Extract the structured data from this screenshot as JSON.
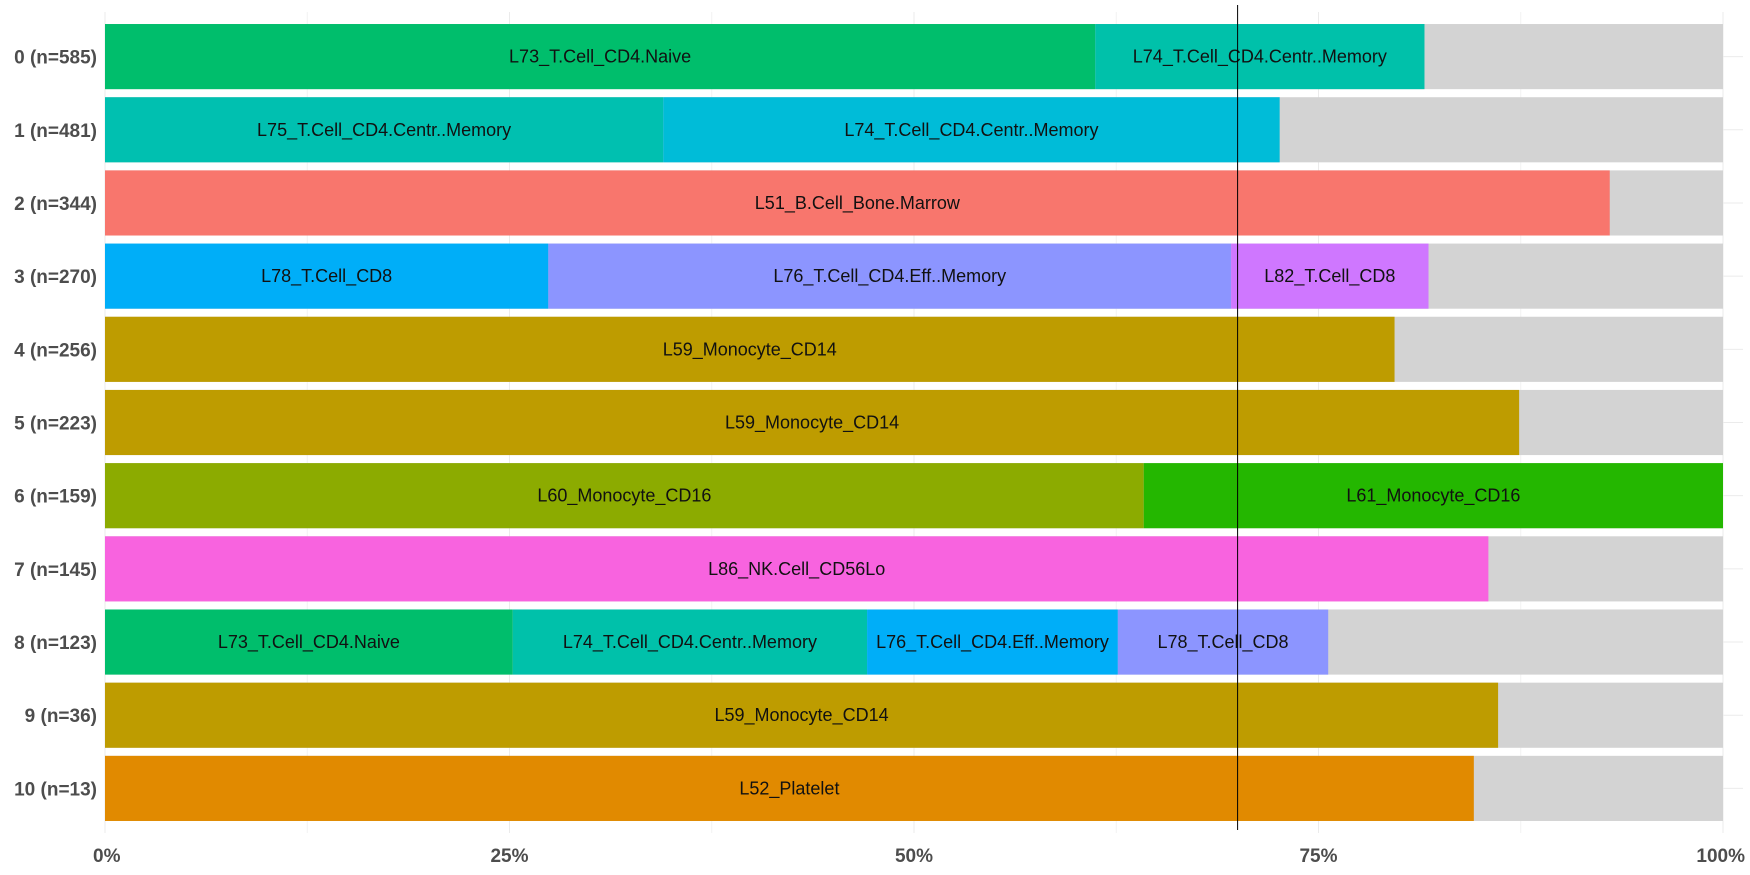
{
  "chart_data": {
    "type": "bar",
    "orientation": "horizontal",
    "stacked": true,
    "xlim": [
      0,
      1
    ],
    "x_ticks": [
      {
        "value": 0,
        "label": "0%"
      },
      {
        "value": 0.25,
        "label": "25%"
      },
      {
        "value": 0.5,
        "label": "50%"
      },
      {
        "value": 0.75,
        "label": "75%"
      },
      {
        "value": 1,
        "label": "100%"
      }
    ],
    "reference_line": 0.7,
    "remainder_color": "#d3d3d3",
    "categories": [
      {
        "label": "0 (n=585)",
        "segments": [
          {
            "name": "L73_T.Cell_CD4.Naive",
            "value": 0.612,
            "color": "#00be6c"
          },
          {
            "name": "L74_T.Cell_CD4.Centr..Memory",
            "value": 0.2035,
            "color": "#00c1aa"
          }
        ]
      },
      {
        "label": "1 (n=481)",
        "segments": [
          {
            "name": "L75_T.Cell_CD4.Centr..Memory",
            "value": 0.345,
            "color": "#00c0b0"
          },
          {
            "name": "L74_T.Cell_CD4.Centr..Memory",
            "value": 0.381,
            "color": "#00bcd8"
          }
        ]
      },
      {
        "label": "2 (n=344)",
        "segments": [
          {
            "name": "L51_B.Cell_Bone.Marrow",
            "value": 0.93,
            "color": "#f8766d"
          }
        ]
      },
      {
        "label": "3 (n=270)",
        "segments": [
          {
            "name": "L78_T.Cell_CD8",
            "value": 0.274,
            "color": "#00aef8"
          },
          {
            "name": "L76_T.Cell_CD4.Eff..Memory",
            "value": 0.422,
            "color": "#8c95ff"
          },
          {
            "name": "L82_T.Cell_CD8",
            "value": 0.122,
            "color": "#cf77ff"
          }
        ]
      },
      {
        "label": "4 (n=256)",
        "segments": [
          {
            "name": "L59_Monocyte_CD14",
            "value": 0.797,
            "color": "#be9c00"
          }
        ]
      },
      {
        "label": "5 (n=223)",
        "segments": [
          {
            "name": "L59_Monocyte_CD14",
            "value": 0.874,
            "color": "#be9c00"
          }
        ]
      },
      {
        "label": "6 (n=159)",
        "segments": [
          {
            "name": "L60_Monocyte_CD16",
            "value": 0.642,
            "color": "#8cab00"
          },
          {
            "name": "L61_Monocyte_CD16",
            "value": 0.358,
            "color": "#24b700"
          }
        ]
      },
      {
        "label": "7 (n=145)",
        "segments": [
          {
            "name": "L86_NK.Cell_CD56Lo",
            "value": 0.855,
            "color": "#f863df"
          }
        ]
      },
      {
        "label": "8 (n=123)",
        "segments": [
          {
            "name": "L73_T.Cell_CD4.Naive",
            "value": 0.252,
            "color": "#00be6c"
          },
          {
            "name": "L74_T.Cell_CD4.Centr..Memory",
            "value": 0.219,
            "color": "#00c1aa"
          },
          {
            "name": "L76_T.Cell_CD4.Eff..Memory",
            "value": 0.155,
            "color": "#00aef8"
          },
          {
            "name": "L78_T.Cell_CD8",
            "value": 0.13,
            "color": "#8c95ff"
          }
        ]
      },
      {
        "label": "9 (n=36)",
        "segments": [
          {
            "name": "L59_Monocyte_CD14",
            "value": 0.861,
            "color": "#be9c00"
          }
        ]
      },
      {
        "label": "10 (n=13)",
        "segments": [
          {
            "name": "L52_Platelet",
            "value": 0.846,
            "color": "#e18a00"
          }
        ]
      }
    ]
  }
}
